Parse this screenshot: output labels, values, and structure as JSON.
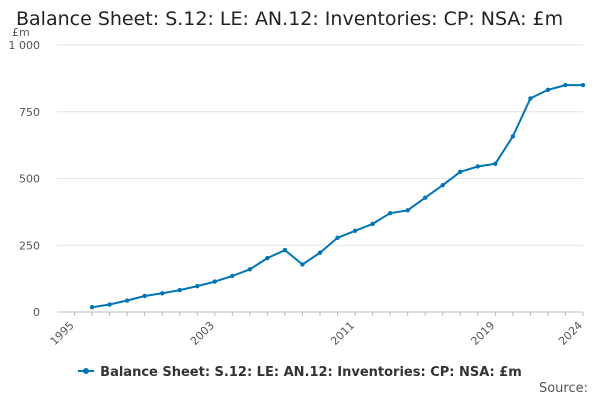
{
  "chart_data": {
    "type": "line",
    "title": "Balance Sheet: S.12: LE: AN.12: Inventories: CP: NSA: £m",
    "ylabel": "£m",
    "xlim": [
      1994,
      2024
    ],
    "ylim": [
      0,
      1000
    ],
    "x_ticks": [
      1995,
      2003,
      2011,
      2019,
      2024
    ],
    "y_ticks": [
      {
        "value": 0,
        "label": "0"
      },
      {
        "value": 250,
        "label": "250"
      },
      {
        "value": 500,
        "label": "500"
      },
      {
        "value": 750,
        "label": "750"
      },
      {
        "value": 1000,
        "label": "1 000"
      }
    ],
    "grid": "horizontal",
    "legend_position": "bottom",
    "series": [
      {
        "name": "Balance Sheet: S.12: LE: AN.12: Inventories: CP: NSA: £m",
        "color": "#0075b4",
        "x": [
          1996,
          1997,
          1998,
          1999,
          2000,
          2001,
          2002,
          2003,
          2004,
          2005,
          2006,
          2007,
          2008,
          2009,
          2010,
          2011,
          2012,
          2013,
          2014,
          2015,
          2016,
          2017,
          2018,
          2019,
          2020,
          2021,
          2022,
          2023,
          2024
        ],
        "values": [
          18,
          28,
          43,
          60,
          70,
          82,
          97,
          114,
          135,
          160,
          202,
          232,
          178,
          222,
          278,
          304,
          330,
          370,
          381,
          428,
          475,
          525,
          545,
          555,
          658,
          800,
          832,
          850,
          850
        ]
      }
    ]
  },
  "legend": {
    "label": "Balance Sheet: S.12: LE: AN.12: Inventories: CP: NSA: £m"
  },
  "footer": {
    "source_label": "Source:"
  }
}
